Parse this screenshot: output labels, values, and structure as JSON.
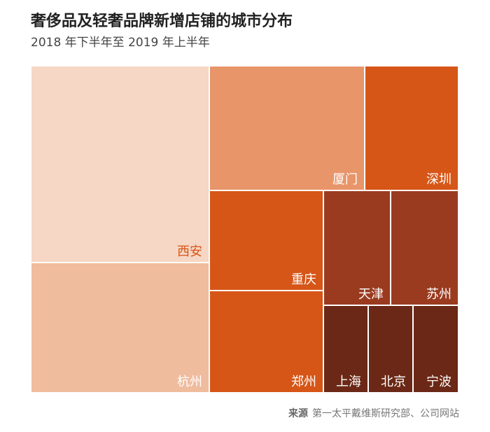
{
  "header": {
    "title": "奢侈品及轻奢品牌新增店铺的城市分布",
    "subtitle": "2018 年下半年至 2019 年上半年"
  },
  "footer": {
    "source_label": "来源",
    "source_text": "第一太平戴维斯研究部、公司网站"
  },
  "colors": {
    "tier1": "#f6d6c4",
    "tier2": "#f0bc9e",
    "tier3": "#e8956a",
    "tier4": "#d65618",
    "tier5": "#9a3b20",
    "tier6": "#6b2816",
    "highlight_label": "#d65618",
    "label": "#ffffff"
  },
  "chart_data": {
    "type": "treemap",
    "title": "奢侈品及轻奢品牌新增店铺的城市分布",
    "subtitle": "2018 年下半年至 2019 年上半年",
    "tiers": [
      {
        "tier": 1,
        "color": "#f6d6c4",
        "cities": [
          "西安"
        ]
      },
      {
        "tier": 2,
        "color": "#f0bc9e",
        "cities": [
          "杭州"
        ]
      },
      {
        "tier": 3,
        "color": "#e8956a",
        "cities": [
          "厦门"
        ]
      },
      {
        "tier": 4,
        "color": "#d65618",
        "cities": [
          "深圳",
          "重庆",
          "郑州"
        ]
      },
      {
        "tier": 5,
        "color": "#9a3b20",
        "cities": [
          "天津",
          "苏州"
        ]
      },
      {
        "tier": 6,
        "color": "#6b2816",
        "cities": [
          "上海",
          "北京",
          "宁波"
        ]
      }
    ],
    "cells": [
      {
        "name": "西安",
        "color": "#f6d6c4",
        "label_color": "#d65618"
      },
      {
        "name": "杭州",
        "color": "#f0bc9e",
        "label_color": "#ffffff"
      },
      {
        "name": "厦门",
        "color": "#e8956a",
        "label_color": "#ffffff"
      },
      {
        "name": "深圳",
        "color": "#d65618",
        "label_color": "#ffffff"
      },
      {
        "name": "重庆",
        "color": "#d65618",
        "label_color": "#ffffff"
      },
      {
        "name": "郑州",
        "color": "#d65618",
        "label_color": "#ffffff"
      },
      {
        "name": "天津",
        "color": "#9a3b20",
        "label_color": "#ffffff"
      },
      {
        "name": "苏州",
        "color": "#9a3b20",
        "label_color": "#ffffff"
      },
      {
        "name": "上海",
        "color": "#6b2816",
        "label_color": "#ffffff"
      },
      {
        "name": "北京",
        "color": "#6b2816",
        "label_color": "#ffffff"
      },
      {
        "name": "宁波",
        "color": "#6b2816",
        "label_color": "#ffffff"
      }
    ]
  }
}
